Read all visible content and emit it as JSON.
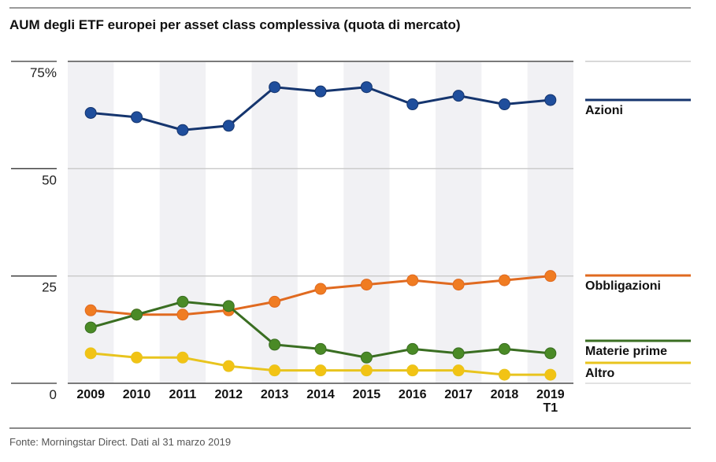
{
  "chart_data": {
    "type": "line",
    "title": "AUM degli ETF europei per asset class complessiva (quota di mercato)",
    "xlabel": "",
    "ylabel": "",
    "ylim": [
      0,
      75
    ],
    "yticks": [
      0,
      25,
      50,
      75
    ],
    "ytick_labels": [
      "0",
      "25",
      "50",
      "75%"
    ],
    "categories": [
      "2009",
      "2010",
      "2011",
      "2012",
      "2013",
      "2014",
      "2015",
      "2016",
      "2017",
      "2018",
      "2019 T1"
    ],
    "category_labels": [
      [
        "2009"
      ],
      [
        "2010"
      ],
      [
        "2011"
      ],
      [
        "2012"
      ],
      [
        "2013"
      ],
      [
        "2014"
      ],
      [
        "2015"
      ],
      [
        "2016"
      ],
      [
        "2017"
      ],
      [
        "2018"
      ],
      [
        "2019",
        "T1"
      ]
    ],
    "grid": true,
    "alternating_bands": true,
    "legend_placement": "right",
    "series": [
      {
        "name": "Azioni",
        "color": "#1f4e9c",
        "line_color": "#15356e",
        "values": [
          63,
          62,
          59,
          60,
          69,
          68,
          69,
          65,
          67,
          65,
          66
        ]
      },
      {
        "name": "Obbligazioni",
        "color": "#f07c22",
        "line_color": "#e06a20",
        "values": [
          17,
          16,
          16,
          17,
          19,
          22,
          23,
          24,
          23,
          24,
          25
        ]
      },
      {
        "name": "Materie prime",
        "color": "#4a8a26",
        "line_color": "#3a6e22",
        "values": [
          13,
          16,
          19,
          18,
          9,
          8,
          6,
          8,
          7,
          8,
          7
        ]
      },
      {
        "name": "Altro",
        "color": "#f2c314",
        "line_color": "#e8c41e",
        "values": [
          7,
          6,
          6,
          4,
          3,
          3,
          3,
          3,
          3,
          2,
          2
        ]
      }
    ],
    "source": "Fonte: Morningstar Direct. Dati al 31 marzo 2019"
  }
}
